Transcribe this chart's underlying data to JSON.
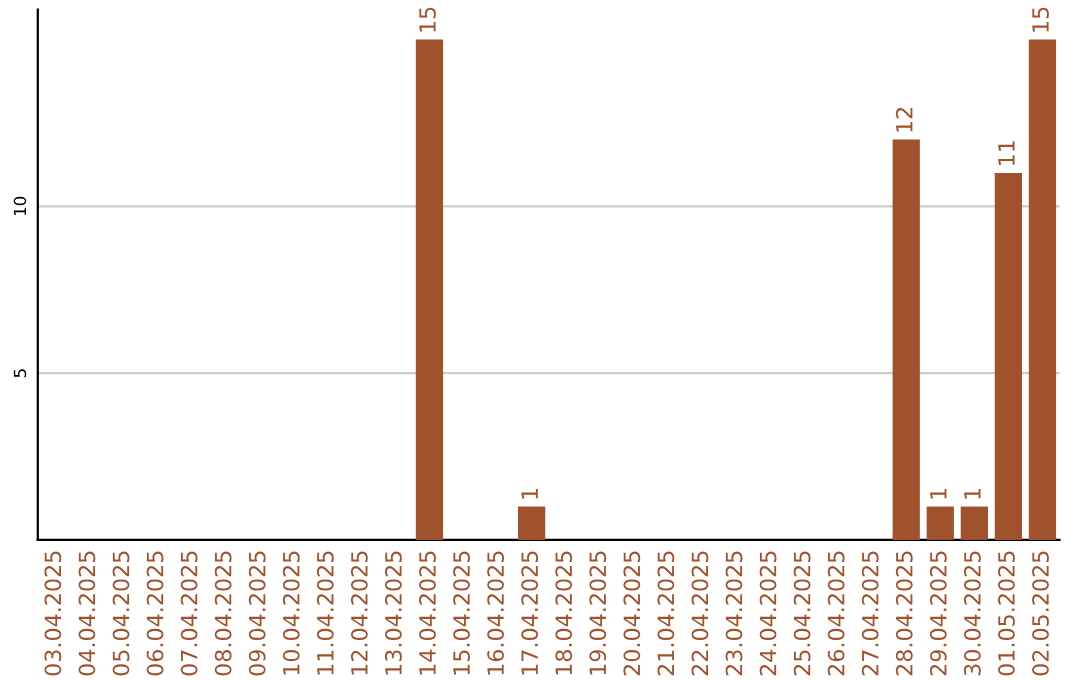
{
  "chart_data": {
    "type": "bar",
    "categories": [
      "03.04.2025",
      "04.04.2025",
      "05.04.2025",
      "06.04.2025",
      "07.04.2025",
      "08.04.2025",
      "09.04.2025",
      "10.04.2025",
      "11.04.2025",
      "12.04.2025",
      "13.04.2025",
      "14.04.2025",
      "15.04.2025",
      "16.04.2025",
      "17.04.2025",
      "18.04.2025",
      "19.04.2025",
      "20.04.2025",
      "21.04.2025",
      "22.04.2025",
      "23.04.2025",
      "24.04.2025",
      "25.04.2025",
      "26.04.2025",
      "27.04.2025",
      "28.04.2025",
      "29.04.2025",
      "30.04.2025",
      "01.05.2025",
      "02.05.2025"
    ],
    "values": [
      0,
      0,
      0,
      0,
      0,
      0,
      0,
      0,
      0,
      0,
      0,
      15,
      0,
      0,
      1,
      0,
      0,
      0,
      0,
      0,
      0,
      0,
      0,
      0,
      0,
      12,
      1,
      1,
      11,
      15
    ],
    "value_labels": [
      null,
      null,
      null,
      null,
      null,
      null,
      null,
      null,
      null,
      null,
      null,
      "15",
      null,
      null,
      "1",
      null,
      null,
      null,
      null,
      null,
      null,
      null,
      null,
      null,
      null,
      "12",
      "1",
      "1",
      "11",
      "15"
    ],
    "color": "#a0522d",
    "ylim": [
      0,
      15.9
    ],
    "yticks": [
      5,
      10
    ],
    "grid": "y"
  }
}
